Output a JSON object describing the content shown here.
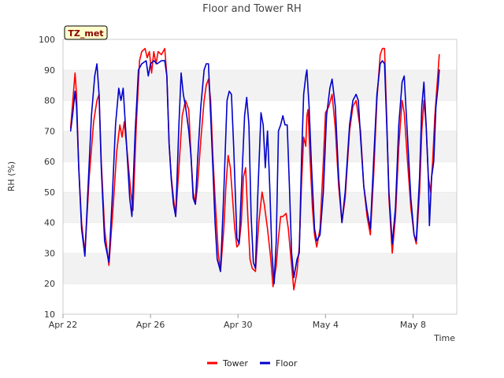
{
  "chart_data": {
    "type": "line",
    "title": "Floor and Tower RH",
    "xlabel": "Time",
    "ylabel": "RH (%)",
    "tag": "TZ_met",
    "ylim": [
      10,
      100
    ],
    "yticks": [
      10,
      20,
      30,
      40,
      50,
      60,
      70,
      80,
      90,
      100
    ],
    "xlim": [
      0,
      18
    ],
    "xticks": [
      {
        "value": 0,
        "label": "Apr 22"
      },
      {
        "value": 4,
        "label": "Apr 26"
      },
      {
        "value": 8,
        "label": "Apr 30"
      },
      {
        "value": 12,
        "label": "May 4"
      },
      {
        "value": 16,
        "label": "May 8"
      }
    ],
    "grid": "alternating horizontal bands",
    "legend": "bottom-center",
    "series": [
      {
        "name": "Tower",
        "color": "#ff0000",
        "points": [
          [
            0.35,
            71
          ],
          [
            0.45,
            80
          ],
          [
            0.55,
            89
          ],
          [
            0.62,
            82
          ],
          [
            0.72,
            58
          ],
          [
            0.85,
            40
          ],
          [
            1.0,
            30
          ],
          [
            1.2,
            55
          ],
          [
            1.4,
            73
          ],
          [
            1.55,
            80
          ],
          [
            1.65,
            82
          ],
          [
            1.75,
            60
          ],
          [
            1.9,
            38
          ],
          [
            2.1,
            26
          ],
          [
            2.3,
            46
          ],
          [
            2.45,
            63
          ],
          [
            2.6,
            72
          ],
          [
            2.7,
            68
          ],
          [
            2.8,
            73
          ],
          [
            2.95,
            62
          ],
          [
            3.1,
            50
          ],
          [
            3.2,
            44
          ],
          [
            3.35,
            72
          ],
          [
            3.5,
            93
          ],
          [
            3.6,
            96
          ],
          [
            3.75,
            97
          ],
          [
            3.85,
            94
          ],
          [
            3.95,
            96
          ],
          [
            4.05,
            89
          ],
          [
            4.15,
            96
          ],
          [
            4.25,
            92
          ],
          [
            4.35,
            96
          ],
          [
            4.5,
            95
          ],
          [
            4.65,
            97
          ],
          [
            4.75,
            88
          ],
          [
            4.85,
            66
          ],
          [
            4.95,
            55
          ],
          [
            5.05,
            48
          ],
          [
            5.15,
            42
          ],
          [
            5.3,
            58
          ],
          [
            5.45,
            75
          ],
          [
            5.6,
            80
          ],
          [
            5.75,
            77
          ],
          [
            5.85,
            62
          ],
          [
            5.95,
            50
          ],
          [
            6.05,
            46
          ],
          [
            6.15,
            52
          ],
          [
            6.3,
            67
          ],
          [
            6.45,
            80
          ],
          [
            6.55,
            85
          ],
          [
            6.65,
            87
          ],
          [
            6.75,
            80
          ],
          [
            6.85,
            62
          ],
          [
            6.95,
            48
          ],
          [
            7.1,
            30
          ],
          [
            7.2,
            24
          ],
          [
            7.35,
            38
          ],
          [
            7.45,
            52
          ],
          [
            7.55,
            62
          ],
          [
            7.65,
            58
          ],
          [
            7.75,
            48
          ],
          [
            7.85,
            38
          ],
          [
            7.95,
            32
          ],
          [
            8.05,
            33
          ],
          [
            8.15,
            40
          ],
          [
            8.25,
            55
          ],
          [
            8.35,
            58
          ],
          [
            8.45,
            42
          ],
          [
            8.55,
            28
          ],
          [
            8.65,
            25
          ],
          [
            8.8,
            24
          ],
          [
            8.95,
            40
          ],
          [
            9.1,
            50
          ],
          [
            9.2,
            46
          ],
          [
            9.35,
            38
          ],
          [
            9.5,
            28
          ],
          [
            9.6,
            19
          ],
          [
            9.75,
            26
          ],
          [
            9.85,
            35
          ],
          [
            9.95,
            42
          ],
          [
            10.05,
            42
          ],
          [
            10.2,
            43
          ],
          [
            10.3,
            38
          ],
          [
            10.45,
            26
          ],
          [
            10.55,
            18
          ],
          [
            10.7,
            24
          ],
          [
            10.8,
            32
          ],
          [
            10.9,
            52
          ],
          [
            11.0,
            68
          ],
          [
            11.1,
            65
          ],
          [
            11.15,
            75
          ],
          [
            11.2,
            77
          ],
          [
            11.3,
            60
          ],
          [
            11.4,
            45
          ],
          [
            11.5,
            36
          ],
          [
            11.6,
            32
          ],
          [
            11.75,
            38
          ],
          [
            11.9,
            60
          ],
          [
            12.0,
            76
          ],
          [
            12.15,
            78
          ],
          [
            12.3,
            82
          ],
          [
            12.45,
            71
          ],
          [
            12.6,
            52
          ],
          [
            12.75,
            40
          ],
          [
            12.9,
            48
          ],
          [
            13.1,
            70
          ],
          [
            13.25,
            78
          ],
          [
            13.4,
            80
          ],
          [
            13.5,
            75
          ],
          [
            13.6,
            70
          ],
          [
            13.75,
            52
          ],
          [
            13.9,
            42
          ],
          [
            14.05,
            36
          ],
          [
            14.2,
            55
          ],
          [
            14.35,
            80
          ],
          [
            14.5,
            95
          ],
          [
            14.6,
            97
          ],
          [
            14.7,
            97
          ],
          [
            14.8,
            74
          ],
          [
            14.9,
            48
          ],
          [
            15.05,
            30
          ],
          [
            15.2,
            42
          ],
          [
            15.35,
            65
          ],
          [
            15.5,
            80
          ],
          [
            15.6,
            76
          ],
          [
            15.75,
            60
          ],
          [
            15.9,
            45
          ],
          [
            16.05,
            36
          ],
          [
            16.15,
            33
          ],
          [
            16.3,
            50
          ],
          [
            16.4,
            70
          ],
          [
            16.5,
            80
          ],
          [
            16.6,
            72
          ],
          [
            16.7,
            55
          ],
          [
            16.8,
            50
          ],
          [
            16.9,
            60
          ],
          [
            17.0,
            75
          ],
          [
            17.1,
            85
          ],
          [
            17.2,
            95
          ]
        ]
      },
      {
        "name": "Floor",
        "color": "#0000cc",
        "points": [
          [
            0.35,
            70
          ],
          [
            0.45,
            76
          ],
          [
            0.55,
            83
          ],
          [
            0.62,
            78
          ],
          [
            0.72,
            58
          ],
          [
            0.85,
            38
          ],
          [
            1.0,
            29
          ],
          [
            1.15,
            52
          ],
          [
            1.3,
            75
          ],
          [
            1.45,
            88
          ],
          [
            1.55,
            92
          ],
          [
            1.65,
            82
          ],
          [
            1.75,
            58
          ],
          [
            1.9,
            34
          ],
          [
            2.1,
            27
          ],
          [
            2.25,
            48
          ],
          [
            2.4,
            72
          ],
          [
            2.55,
            84
          ],
          [
            2.65,
            80
          ],
          [
            2.75,
            84
          ],
          [
            2.9,
            66
          ],
          [
            3.05,
            48
          ],
          [
            3.15,
            42
          ],
          [
            3.3,
            70
          ],
          [
            3.45,
            90
          ],
          [
            3.6,
            92
          ],
          [
            3.8,
            93
          ],
          [
            3.9,
            88
          ],
          [
            4.0,
            92
          ],
          [
            4.15,
            93
          ],
          [
            4.3,
            92
          ],
          [
            4.5,
            93
          ],
          [
            4.65,
            93
          ],
          [
            4.75,
            88
          ],
          [
            4.85,
            66
          ],
          [
            4.95,
            54
          ],
          [
            5.05,
            46
          ],
          [
            5.15,
            42
          ],
          [
            5.3,
            72
          ],
          [
            5.4,
            89
          ],
          [
            5.5,
            82
          ],
          [
            5.6,
            78
          ],
          [
            5.75,
            70
          ],
          [
            5.85,
            62
          ],
          [
            5.95,
            48
          ],
          [
            6.05,
            46
          ],
          [
            6.15,
            60
          ],
          [
            6.3,
            78
          ],
          [
            6.45,
            90
          ],
          [
            6.55,
            92
          ],
          [
            6.65,
            92
          ],
          [
            6.75,
            75
          ],
          [
            6.85,
            58
          ],
          [
            6.95,
            40
          ],
          [
            7.05,
            28
          ],
          [
            7.2,
            24
          ],
          [
            7.35,
            50
          ],
          [
            7.5,
            80
          ],
          [
            7.6,
            83
          ],
          [
            7.7,
            82
          ],
          [
            7.8,
            65
          ],
          [
            7.95,
            35
          ],
          [
            8.05,
            33
          ],
          [
            8.15,
            50
          ],
          [
            8.3,
            75
          ],
          [
            8.4,
            81
          ],
          [
            8.5,
            72
          ],
          [
            8.6,
            42
          ],
          [
            8.7,
            27
          ],
          [
            8.8,
            25
          ],
          [
            8.9,
            48
          ],
          [
            9.05,
            76
          ],
          [
            9.15,
            72
          ],
          [
            9.25,
            58
          ],
          [
            9.35,
            70
          ],
          [
            9.45,
            52
          ],
          [
            9.55,
            30
          ],
          [
            9.65,
            20
          ],
          [
            9.75,
            34
          ],
          [
            9.85,
            70
          ],
          [
            9.95,
            72
          ],
          [
            10.05,
            75
          ],
          [
            10.15,
            72
          ],
          [
            10.25,
            72
          ],
          [
            10.35,
            52
          ],
          [
            10.45,
            30
          ],
          [
            10.55,
            22
          ],
          [
            10.7,
            28
          ],
          [
            10.8,
            30
          ],
          [
            10.9,
            60
          ],
          [
            11.0,
            82
          ],
          [
            11.1,
            88
          ],
          [
            11.15,
            90
          ],
          [
            11.25,
            78
          ],
          [
            11.35,
            60
          ],
          [
            11.5,
            38
          ],
          [
            11.6,
            34
          ],
          [
            11.75,
            36
          ],
          [
            11.9,
            50
          ],
          [
            12.05,
            75
          ],
          [
            12.2,
            84
          ],
          [
            12.3,
            87
          ],
          [
            12.45,
            78
          ],
          [
            12.6,
            55
          ],
          [
            12.75,
            40
          ],
          [
            12.9,
            50
          ],
          [
            13.1,
            72
          ],
          [
            13.25,
            80
          ],
          [
            13.4,
            82
          ],
          [
            13.5,
            80
          ],
          [
            13.6,
            68
          ],
          [
            13.75,
            52
          ],
          [
            13.9,
            44
          ],
          [
            14.05,
            38
          ],
          [
            14.2,
            60
          ],
          [
            14.35,
            82
          ],
          [
            14.5,
            92
          ],
          [
            14.6,
            93
          ],
          [
            14.7,
            92
          ],
          [
            14.8,
            72
          ],
          [
            14.9,
            50
          ],
          [
            15.05,
            33
          ],
          [
            15.2,
            45
          ],
          [
            15.35,
            72
          ],
          [
            15.5,
            86
          ],
          [
            15.6,
            88
          ],
          [
            15.75,
            68
          ],
          [
            15.9,
            48
          ],
          [
            16.05,
            36
          ],
          [
            16.15,
            34
          ],
          [
            16.3,
            55
          ],
          [
            16.4,
            78
          ],
          [
            16.5,
            86
          ],
          [
            16.6,
            72
          ],
          [
            16.7,
            55
          ],
          [
            16.75,
            39
          ],
          [
            16.85,
            55
          ],
          [
            16.95,
            60
          ],
          [
            17.05,
            78
          ],
          [
            17.15,
            85
          ],
          [
            17.2,
            90
          ]
        ]
      }
    ]
  }
}
